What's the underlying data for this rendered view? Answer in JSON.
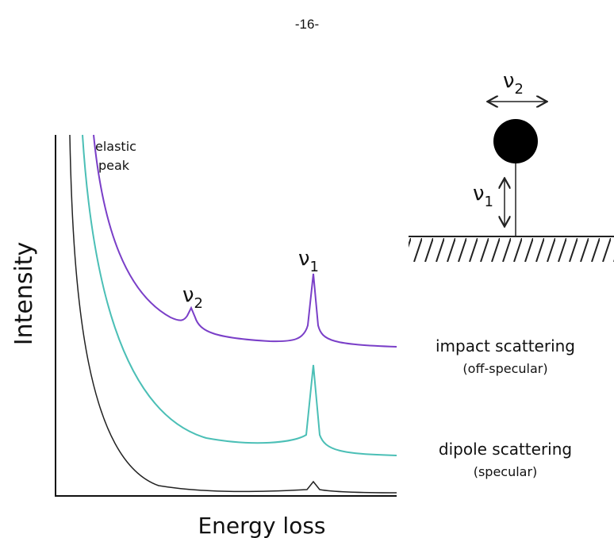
{
  "header": {
    "page_number": "-16-"
  },
  "spectrum": {
    "y_label": "Intensity",
    "x_label": "Energy loss",
    "elastic_peak": [
      "elastic",
      "peak"
    ],
    "peak_v2": {
      "symbol": "ν",
      "sub": "2"
    },
    "peak_v1": {
      "symbol": "ν",
      "sub": "1"
    },
    "impact": {
      "title": "impact scattering",
      "note": "(off-specular)"
    },
    "dipole": {
      "title": "dipole scattering",
      "note": "(specular)"
    }
  },
  "adsorbate": {
    "mode_v2": {
      "symbol": "ν",
      "sub": "2"
    },
    "mode_v1": {
      "symbol": "ν",
      "sub": "1"
    }
  }
}
